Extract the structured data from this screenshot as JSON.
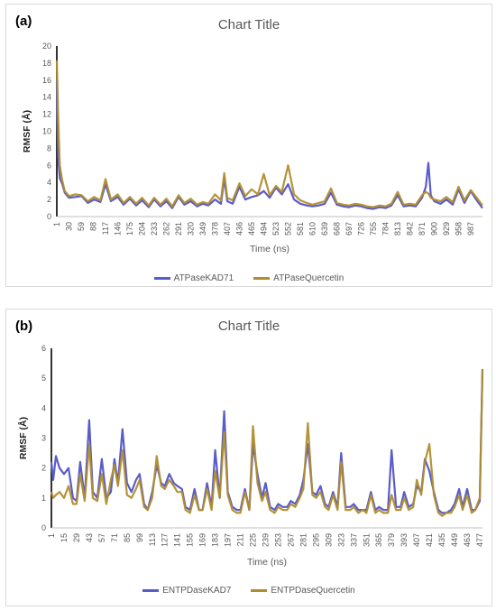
{
  "panels": [
    {
      "label": "(a)",
      "title": "Chart Title",
      "chart_data": {
        "type": "line",
        "title": "Chart Title",
        "xlabel": "Time (ns)",
        "ylabel": "RMSF (Å)",
        "ylim": [
          0,
          20
        ],
        "yticks": [
          0,
          2,
          4,
          6,
          8,
          10,
          12,
          14,
          16,
          18,
          20
        ],
        "xticks": [
          1,
          30,
          59,
          88,
          117,
          146,
          175,
          204,
          233,
          262,
          291,
          320,
          349,
          378,
          407,
          436,
          465,
          494,
          523,
          552,
          581,
          610,
          639,
          668,
          697,
          726,
          755,
          784,
          813,
          842,
          871,
          900,
          929,
          958,
          987
        ],
        "xrange": [
          1,
          1015
        ],
        "legend_position": "bottom",
        "series": [
          {
            "name": "ATPaseKAD71",
            "color": "#5a5cc8",
            "x": [
              1,
              4,
              8,
              14,
              20,
              30,
              45,
              60,
              75,
              90,
              105,
              117,
              130,
              146,
              160,
              175,
              190,
              204,
              220,
              233,
              248,
              262,
              276,
              291,
              305,
              320,
              335,
              349,
              362,
              378,
              392,
              400,
              407,
              420,
              436,
              450,
              465,
              480,
              494,
              508,
              523,
              537,
              552,
              566,
              581,
              596,
              610,
              625,
              639,
              654,
              668,
              683,
              697,
              712,
              726,
              740,
              755,
              770,
              784,
              798,
              813,
              827,
              842,
              856,
              871,
              880,
              886,
              892,
              900,
              915,
              929,
              944,
              958,
              972,
              987,
              1000,
              1015
            ],
            "y": [
              16,
              7,
              4.5,
              3.8,
              2.8,
              2.2,
              2.3,
              2.4,
              1.6,
              2.0,
              1.7,
              3.8,
              1.8,
              2.3,
              1.4,
              2.1,
              1.3,
              1.9,
              1.1,
              2.0,
              1.2,
              1.8,
              1.0,
              2.3,
              1.4,
              1.8,
              1.2,
              1.5,
              1.3,
              2.0,
              1.5,
              4.5,
              1.8,
              1.5,
              3.5,
              2.0,
              2.3,
              2.5,
              3.0,
              2.2,
              3.4,
              2.6,
              3.8,
              2.0,
              1.5,
              1.3,
              1.2,
              1.3,
              1.5,
              2.8,
              1.4,
              1.2,
              1.1,
              1.3,
              1.2,
              1.0,
              0.9,
              1.1,
              1.0,
              1.3,
              2.5,
              1.2,
              1.3,
              1.2,
              2.2,
              3.5,
              6.3,
              2.5,
              1.8,
              1.5,
              2.0,
              1.4,
              3.2,
              1.6,
              3.0,
              2.0,
              1.0
            ]
          },
          {
            "name": "ATPaseQuercetin",
            "color": "#b08d2e",
            "x": [
              1,
              4,
              8,
              14,
              20,
              30,
              45,
              60,
              75,
              90,
              105,
              117,
              130,
              146,
              160,
              175,
              190,
              204,
              220,
              233,
              248,
              262,
              276,
              291,
              305,
              320,
              335,
              349,
              362,
              378,
              392,
              400,
              407,
              420,
              436,
              450,
              465,
              480,
              494,
              508,
              523,
              537,
              552,
              566,
              581,
              596,
              610,
              625,
              639,
              654,
              668,
              683,
              697,
              712,
              726,
              740,
              755,
              770,
              784,
              798,
              813,
              827,
              842,
              856,
              871,
              880,
              886,
              892,
              900,
              915,
              929,
              944,
              958,
              972,
              987,
              1000,
              1015
            ],
            "y": [
              18.3,
              12,
              6,
              4.2,
              3.0,
              2.4,
              2.6,
              2.5,
              1.8,
              2.3,
              1.9,
              4.4,
              2.0,
              2.6,
              1.6,
              2.3,
              1.5,
              2.2,
              1.3,
              2.2,
              1.4,
              2.1,
              1.2,
              2.5,
              1.6,
              2.1,
              1.4,
              1.7,
              1.5,
              2.6,
              1.9,
              5.1,
              2.2,
              1.9,
              3.9,
              2.4,
              3.2,
              2.6,
              5.0,
              2.5,
              3.6,
              2.9,
              6.0,
              2.6,
              1.9,
              1.6,
              1.4,
              1.6,
              1.8,
              3.3,
              1.6,
              1.4,
              1.3,
              1.5,
              1.4,
              1.2,
              1.1,
              1.3,
              1.2,
              1.5,
              2.9,
              1.4,
              1.5,
              1.4,
              2.5,
              2.9,
              2.7,
              2.2,
              2.0,
              1.8,
              2.3,
              1.7,
              3.5,
              1.9,
              3.1,
              2.3,
              1.3
            ]
          }
        ]
      }
    },
    {
      "label": "(b)",
      "title": "Chart Title",
      "chart_data": {
        "type": "line",
        "title": "Chart Title",
        "xlabel": "Time (ns)",
        "ylabel": "RMSF (Å)",
        "ylim": [
          0,
          6
        ],
        "yticks": [
          0,
          1,
          2,
          3,
          4,
          5,
          6
        ],
        "xticks": [
          1,
          15,
          29,
          43,
          57,
          71,
          85,
          99,
          113,
          127,
          141,
          155,
          169,
          183,
          197,
          211,
          225,
          239,
          253,
          267,
          281,
          295,
          309,
          323,
          337,
          351,
          365,
          379,
          393,
          407,
          421,
          435,
          449,
          463,
          477
        ],
        "xrange": [
          1,
          480
        ],
        "legend_position": "bottom",
        "series": [
          {
            "name": "ENTPDaseKAD7",
            "color": "#5a5cc8",
            "x": [
              1,
              3,
              6,
              10,
              15,
              20,
              25,
              29,
              33,
              38,
              43,
              47,
              52,
              57,
              62,
              67,
              71,
              75,
              80,
              85,
              90,
              95,
              99,
              104,
              108,
              113,
              118,
              123,
              127,
              132,
              137,
              141,
              146,
              150,
              155,
              160,
              165,
              169,
              174,
              179,
              183,
              188,
              193,
              197,
              202,
              207,
              211,
              216,
              221,
              225,
              230,
              235,
              239,
              244,
              249,
              253,
              258,
              263,
              267,
              272,
              277,
              281,
              286,
              291,
              295,
              300,
              305,
              309,
              314,
              319,
              323,
              328,
              333,
              337,
              342,
              347,
              351,
              356,
              361,
              365,
              370,
              375,
              379,
              384,
              389,
              393,
              398,
              403,
              407,
              412,
              416,
              421,
              426,
              431,
              435,
              440,
              445,
              449,
              454,
              458,
              463,
              468,
              472,
              477,
              480
            ],
            "y": [
              2.2,
              1.6,
              2.4,
              2.0,
              1.8,
              2.0,
              1.0,
              0.9,
              2.2,
              1.0,
              3.6,
              1.2,
              1.0,
              2.3,
              1.0,
              1.2,
              2.3,
              1.5,
              3.3,
              1.5,
              1.2,
              1.6,
              1.8,
              0.8,
              0.6,
              1.2,
              2.1,
              1.5,
              1.4,
              1.8,
              1.5,
              1.4,
              1.3,
              0.7,
              0.6,
              1.3,
              0.6,
              0.6,
              1.5,
              0.7,
              2.6,
              1.0,
              3.9,
              1.2,
              0.7,
              0.6,
              0.6,
              1.3,
              0.6,
              2.8,
              1.8,
              1.0,
              1.5,
              0.7,
              0.6,
              0.8,
              0.7,
              0.7,
              0.9,
              0.8,
              1.1,
              1.6,
              2.8,
              1.2,
              1.1,
              1.4,
              0.8,
              0.7,
              1.2,
              0.7,
              2.5,
              0.7,
              0.7,
              0.8,
              0.6,
              0.6,
              0.6,
              1.2,
              0.6,
              0.7,
              0.6,
              0.6,
              2.6,
              0.7,
              0.7,
              1.2,
              0.7,
              0.8,
              1.4,
              1.2,
              2.3,
              1.9,
              1.2,
              0.6,
              0.5,
              0.5,
              0.6,
              0.8,
              1.3,
              0.7,
              1.3,
              0.6,
              0.6,
              0.9,
              5.3
            ]
          },
          {
            "name": "ENTPDaseQuercetin",
            "color": "#b08d2e",
            "x": [
              1,
              3,
              6,
              10,
              15,
              20,
              25,
              29,
              33,
              38,
              43,
              47,
              52,
              57,
              62,
              67,
              71,
              75,
              80,
              85,
              90,
              95,
              99,
              104,
              108,
              113,
              118,
              123,
              127,
              132,
              137,
              141,
              146,
              150,
              155,
              160,
              165,
              169,
              174,
              179,
              183,
              188,
              193,
              197,
              202,
              207,
              211,
              216,
              221,
              225,
              230,
              235,
              239,
              244,
              249,
              253,
              258,
              263,
              267,
              272,
              277,
              281,
              286,
              291,
              295,
              300,
              305,
              309,
              314,
              319,
              323,
              328,
              333,
              337,
              342,
              347,
              351,
              356,
              361,
              365,
              370,
              375,
              379,
              384,
              389,
              393,
              398,
              403,
              407,
              412,
              416,
              421,
              426,
              431,
              435,
              440,
              445,
              449,
              454,
              458,
              463,
              468,
              472,
              477,
              480
            ],
            "y": [
              1.2,
              1.0,
              1.1,
              1.2,
              1.0,
              1.4,
              0.8,
              0.8,
              1.8,
              0.9,
              2.8,
              1.0,
              0.9,
              1.8,
              0.8,
              1.6,
              2.1,
              1.4,
              2.6,
              1.1,
              1.0,
              1.3,
              1.6,
              0.7,
              0.6,
              1.0,
              2.4,
              1.4,
              1.3,
              1.6,
              1.4,
              1.2,
              1.2,
              0.6,
              0.5,
              1.1,
              0.6,
              0.6,
              1.3,
              0.6,
              1.9,
              1.0,
              3.2,
              1.1,
              0.6,
              0.5,
              0.5,
              1.2,
              0.6,
              3.4,
              1.5,
              0.9,
              1.2,
              0.6,
              0.5,
              0.7,
              0.6,
              0.6,
              0.8,
              0.7,
              1.0,
              1.3,
              3.5,
              1.1,
              1.0,
              1.2,
              0.7,
              0.6,
              1.1,
              0.6,
              2.2,
              0.6,
              0.6,
              0.7,
              0.5,
              0.6,
              0.5,
              1.1,
              0.5,
              0.6,
              0.5,
              0.5,
              1.1,
              0.6,
              0.6,
              1.0,
              0.6,
              0.7,
              1.6,
              1.1,
              2.2,
              2.8,
              1.1,
              0.5,
              0.4,
              0.5,
              0.5,
              0.7,
              1.1,
              0.6,
              1.1,
              0.5,
              0.6,
              1.0,
              5.3
            ]
          }
        ]
      }
    }
  ]
}
